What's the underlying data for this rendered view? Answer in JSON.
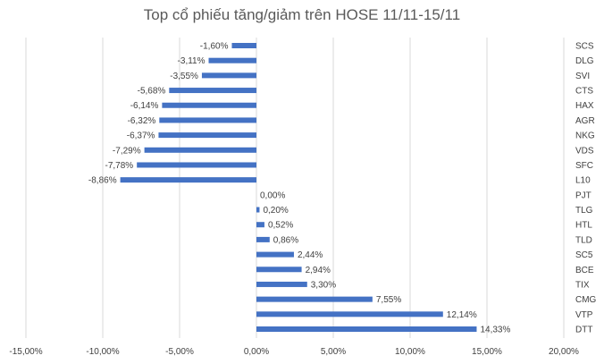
{
  "chart_data": {
    "type": "bar",
    "orientation": "horizontal",
    "title": "Top cổ phiếu tăng/giảm trên HOSE 11/11-15/11",
    "xlim": [
      -15,
      20
    ],
    "x_ticks": [
      -15,
      -10,
      -5,
      0,
      5,
      10,
      15,
      20
    ],
    "x_tick_labels": [
      "-15,00%",
      "-10,00%",
      "-5,00%",
      "0,00%",
      "5,00%",
      "10,00%",
      "15,00%",
      "20,00%"
    ],
    "grid": true,
    "legend": "none",
    "bar_color": "#4472C4",
    "categories": [
      "SCS",
      "DLG",
      "SVI",
      "CTS",
      "HAX",
      "AGR",
      "NKG",
      "VDS",
      "SFC",
      "L10",
      "PJT",
      "TLG",
      "HTL",
      "TLD",
      "SC5",
      "BCE",
      "TIX",
      "CMG",
      "VTP",
      "DTT"
    ],
    "values": [
      -1.6,
      -3.11,
      -3.55,
      -5.68,
      -6.14,
      -6.32,
      -6.37,
      -7.29,
      -7.78,
      -8.86,
      0.0,
      0.2,
      0.52,
      0.86,
      2.44,
      2.94,
      3.3,
      7.55,
      12.14,
      14.33
    ],
    "data_labels": [
      "-1,60%",
      "-3,11%",
      "-3,55%",
      "-5,68%",
      "-6,14%",
      "-6,32%",
      "-6,37%",
      "-7,29%",
      "-7,78%",
      "-8,86%",
      "0,00%",
      "0,20%",
      "0,52%",
      "0,86%",
      "2,44%",
      "2,94%",
      "3,30%",
      "7,55%",
      "12,14%",
      "14,33%"
    ]
  }
}
